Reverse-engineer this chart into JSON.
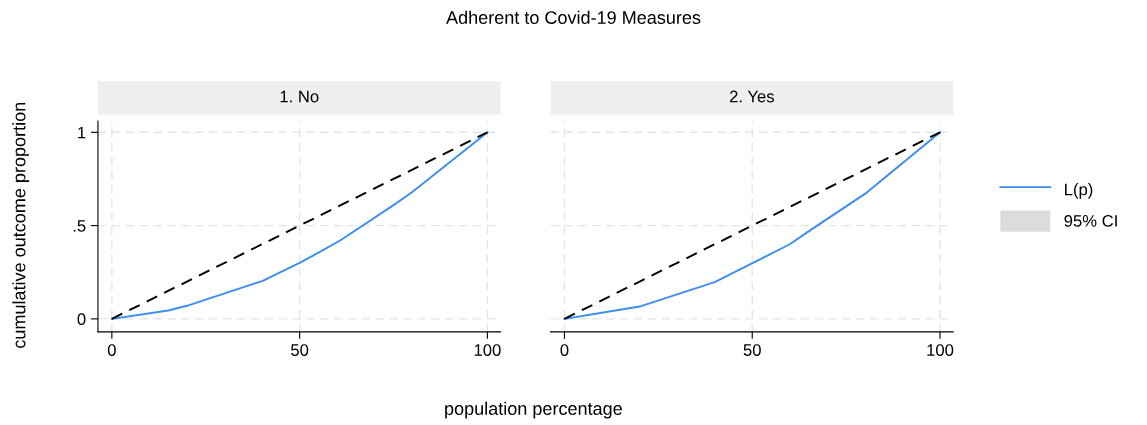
{
  "chart_data": [
    {
      "type": "line",
      "title": "Adherent to Covid-19 Measures",
      "subtitle": "1. No",
      "xlabel": "population percentage",
      "ylabel": "cumulative outcome proportion",
      "xlim": [
        -3.7,
        103.5
      ],
      "xticks": [
        0,
        50,
        100
      ],
      "ylim": [
        -0.07,
        1.06
      ],
      "yticks": [
        0,
        {
          "value": 0.5,
          "label": ".5"
        },
        1
      ],
      "grid": true,
      "series": [
        {
          "color": "#3c8ef0",
          "x": [
            0,
            15,
            20,
            40.3,
            50,
            55.5,
            60.8,
            75,
            80,
            100
          ],
          "values": [
            0,
            0.045,
            0.07,
            0.205,
            0.3,
            0.36,
            0.42,
            0.61,
            0.68,
            1
          ]
        },
        {
          "color": "#000000",
          "line_style": "dashed",
          "x": [
            0,
            100
          ],
          "values": [
            0,
            1
          ]
        }
      ]
    },
    {
      "type": "line",
      "subtitle": "2. Yes",
      "xlim": [
        -3.7,
        103.5
      ],
      "xticks": [
        0,
        50,
        100
      ],
      "ylim": [
        -0.07,
        1.06
      ],
      "yticks": [
        {
          "value": 0,
          "label": null
        },
        {
          "value": 0.5,
          "label": null
        },
        {
          "value": 1,
          "label": null
        }
      ],
      "grid": true,
      "tick_labels": "x",
      "legend": "right",
      "series": [
        {
          "name": "L(p)",
          "color": "#3c8ef0",
          "x": [
            0,
            20,
            40,
            50.2,
            60,
            65.8,
            80,
            100
          ],
          "values": [
            0,
            0.066,
            0.197,
            0.3,
            0.4,
            0.48,
            0.67,
            1
          ]
        },
        {
          "name": "95% CI",
          "type": "area",
          "color": "#dcdcdc"
        },
        {
          "color": "#000000",
          "line_style": "dashed",
          "x": [
            0,
            100
          ],
          "values": [
            0,
            1
          ]
        }
      ]
    }
  ]
}
